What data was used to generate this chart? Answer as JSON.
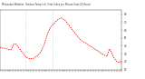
{
  "title": "Milwaukee Weather  Outdoor Temp (vs)  Heat Index per Minute (Last 24 Hours)",
  "line_color": "#ff0000",
  "background_color": "#ffffff",
  "ylim": [
    10,
    85
  ],
  "yticks": [
    10,
    20,
    30,
    40,
    50,
    60,
    70,
    80
  ],
  "vlines": [
    0.21,
    0.43
  ],
  "x_values": [
    0,
    1,
    2,
    3,
    4,
    5,
    6,
    7,
    8,
    9,
    10,
    11,
    12,
    13,
    14,
    15,
    16,
    17,
    18,
    19,
    20,
    21,
    22,
    23,
    24,
    25,
    26,
    27,
    28,
    29,
    30,
    31,
    32,
    33,
    34,
    35,
    36,
    37,
    38,
    39,
    40,
    41,
    42,
    43,
    44,
    45,
    46,
    47,
    48,
    49,
    50,
    51,
    52,
    53,
    54,
    55,
    56,
    57,
    58,
    59,
    60,
    61,
    62,
    63,
    64,
    65,
    66,
    67,
    68,
    69,
    70,
    71,
    72,
    73,
    74,
    75,
    76,
    77,
    78,
    79,
    80,
    81,
    82,
    83,
    84,
    85,
    86,
    87,
    88,
    89,
    90,
    91,
    92,
    93,
    94,
    95,
    96,
    97,
    98,
    99
  ],
  "y_values": [
    38,
    38,
    37,
    37,
    37,
    36,
    36,
    35,
    35,
    35,
    38,
    42,
    43,
    42,
    40,
    38,
    36,
    34,
    32,
    30,
    28,
    26,
    25,
    24,
    24,
    24,
    24,
    24,
    25,
    26,
    27,
    28,
    30,
    32,
    35,
    38,
    42,
    47,
    52,
    57,
    60,
    63,
    65,
    67,
    68,
    70,
    72,
    73,
    74,
    75,
    75,
    74,
    73,
    72,
    70,
    68,
    66,
    64,
    62,
    60,
    58,
    56,
    54,
    52,
    50,
    48,
    47,
    46,
    45,
    44,
    43,
    42,
    41,
    40,
    39,
    38,
    37,
    36,
    35,
    34,
    33,
    32,
    31,
    30,
    29,
    28,
    28,
    27,
    32,
    36,
    34,
    30,
    26,
    24,
    22,
    20,
    19,
    19,
    20,
    20
  ],
  "title_fontsize": 1.8,
  "tick_fontsize": 2.0,
  "linewidth": 0.55,
  "figsize": [
    1.6,
    0.87
  ],
  "dpi": 100
}
